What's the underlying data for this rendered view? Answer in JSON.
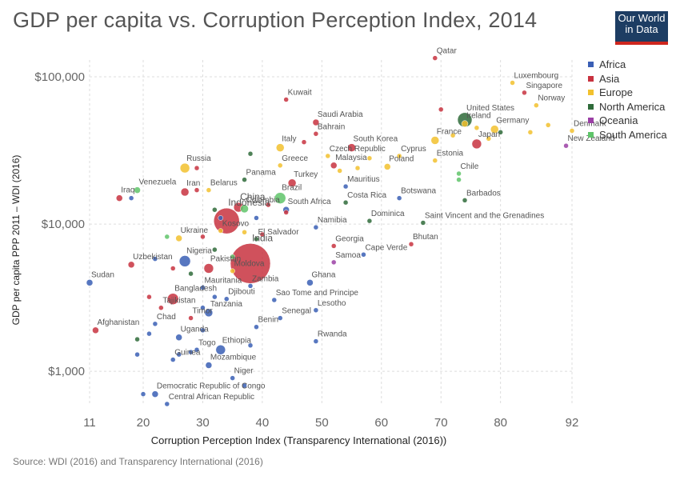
{
  "header": {
    "title": "GDP per capita vs. Corruption Perception Index, 2014",
    "logo_line1": "Our World",
    "logo_line2": "in Data"
  },
  "source": "Source: WDI (2016) and Transparency International (2016)",
  "colors": {
    "Africa": "#3a5fb5",
    "Asia": "#c8323f",
    "Europe": "#f2c12e",
    "North America": "#2f6b3a",
    "Oceania": "#9b3fa5",
    "South America": "#5fc46a"
  },
  "chart_data": {
    "type": "scatter",
    "title": "GDP per capita vs. Corruption Perception Index, 2014",
    "xlabel": "Corruption Perception Index (Transparency International (2016))",
    "ylabel": "GDP per capita PPP 2011 – WDI (2016)",
    "xlim": [
      11,
      92
    ],
    "ylim": [
      600,
      130000
    ],
    "y_scale": "log",
    "x_ticks": [
      11,
      20,
      30,
      40,
      50,
      60,
      70,
      80,
      92
    ],
    "y_ticks": [
      {
        "value": 1000,
        "label": "$1,000"
      },
      {
        "value": 10000,
        "label": "$10,000"
      },
      {
        "value": 100000,
        "label": "$100,000"
      }
    ],
    "grid": true,
    "legend_position": "right",
    "legend": [
      "Africa",
      "Asia",
      "Europe",
      "North America",
      "Oceania",
      "South America"
    ],
    "points": [
      {
        "label": "Qatar",
        "x": 69,
        "y": 134000,
        "r": 3,
        "region": "Asia"
      },
      {
        "label": "Luxembourg",
        "x": 82,
        "y": 91000,
        "r": 3,
        "region": "Europe"
      },
      {
        "label": "Singapore",
        "x": 84,
        "y": 78000,
        "r": 3,
        "region": "Asia"
      },
      {
        "label": "Norway",
        "x": 86,
        "y": 64000,
        "r": 3,
        "region": "Europe"
      },
      {
        "label": "Kuwait",
        "x": 44,
        "y": 70000,
        "r": 3,
        "region": "Asia"
      },
      {
        "label": "United States",
        "x": 74,
        "y": 51000,
        "r": 9,
        "region": "North America"
      },
      {
        "label": "Ireland",
        "x": 74,
        "y": 48000,
        "r": 4,
        "region": "Europe"
      },
      {
        "label": "Saudi Arabia",
        "x": 49,
        "y": 49000,
        "r": 4,
        "region": "Asia"
      },
      {
        "label": "Bahrain",
        "x": 49,
        "y": 41000,
        "r": 3,
        "region": "Asia"
      },
      {
        "label": "Germany",
        "x": 79,
        "y": 44000,
        "r": 5,
        "region": "Europe"
      },
      {
        "label": "Denmark",
        "x": 92,
        "y": 43000,
        "r": 3,
        "region": "Europe"
      },
      {
        "label": "France",
        "x": 69,
        "y": 37000,
        "r": 5,
        "region": "Europe"
      },
      {
        "label": "Japan",
        "x": 76,
        "y": 35000,
        "r": 6,
        "region": "Asia"
      },
      {
        "label": "New Zealand",
        "x": 91,
        "y": 34000,
        "r": 3,
        "region": "Oceania"
      },
      {
        "label": "Italy",
        "x": 43,
        "y": 33000,
        "r": 5,
        "region": "Europe"
      },
      {
        "label": "South Korea",
        "x": 55,
        "y": 33000,
        "r": 5,
        "region": "Asia"
      },
      {
        "label": "Czech Republic",
        "x": 51,
        "y": 29000,
        "r": 3,
        "region": "Europe"
      },
      {
        "label": "Cyprus",
        "x": 63,
        "y": 29000,
        "r": 3,
        "region": "Europe"
      },
      {
        "label": "Malaysia",
        "x": 52,
        "y": 25000,
        "r": 4,
        "region": "Asia"
      },
      {
        "label": "Poland",
        "x": 61,
        "y": 24500,
        "r": 4,
        "region": "Europe"
      },
      {
        "label": "Greece",
        "x": 43,
        "y": 25000,
        "r": 3,
        "region": "Europe"
      },
      {
        "label": "Estonia",
        "x": 69,
        "y": 27000,
        "r": 3,
        "region": "Europe"
      },
      {
        "label": "Chile",
        "x": 73,
        "y": 22000,
        "r": 3,
        "region": "South America"
      },
      {
        "label": "Russia",
        "x": 27,
        "y": 24000,
        "r": 6,
        "region": "Europe"
      },
      {
        "label": "Panama",
        "x": 37,
        "y": 20000,
        "r": 3,
        "region": "North America"
      },
      {
        "label": "Turkey",
        "x": 45,
        "y": 19000,
        "r": 5,
        "region": "Asia"
      },
      {
        "label": "Mauritius",
        "x": 54,
        "y": 18000,
        "r": 3,
        "region": "Africa"
      },
      {
        "label": "Venezuela",
        "x": 19,
        "y": 17000,
        "r": 4,
        "region": "South America"
      },
      {
        "label": "Iran",
        "x": 27,
        "y": 16500,
        "r": 5,
        "region": "Asia"
      },
      {
        "label": "Belarus",
        "x": 31,
        "y": 17000,
        "r": 3,
        "region": "Europe"
      },
      {
        "label": "China",
        "x": 36,
        "y": 13000,
        "r": 6,
        "region": "Asia"
      },
      {
        "label": "Brazil",
        "x": 43,
        "y": 15000,
        "r": 7,
        "region": "South America"
      },
      {
        "label": "Botswana",
        "x": 63,
        "y": 15000,
        "r": 3,
        "region": "Africa"
      },
      {
        "label": "Barbados",
        "x": 74,
        "y": 14500,
        "r": 3,
        "region": "North America"
      },
      {
        "label": "Costa Rica",
        "x": 54,
        "y": 14000,
        "r": 3,
        "region": "North America"
      },
      {
        "label": "Iraq",
        "x": 16,
        "y": 15000,
        "r": 4,
        "region": "Asia"
      },
      {
        "label": "Colombia",
        "x": 37,
        "y": 12700,
        "r": 5,
        "region": "South America"
      },
      {
        "label": "South Africa",
        "x": 44,
        "y": 12500,
        "r": 4,
        "region": "Africa"
      },
      {
        "label": "Indonesia",
        "x": 34,
        "y": 10500,
        "r": 16,
        "region": "Asia"
      },
      {
        "label": "Dominica",
        "x": 58,
        "y": 10500,
        "r": 3,
        "region": "North America"
      },
      {
        "label": "Saint Vincent and the Grenadines",
        "x": 67,
        "y": 10200,
        "r": 3,
        "region": "North America"
      },
      {
        "label": "Kosovo",
        "x": 33,
        "y": 9000,
        "r": 3,
        "region": "Europe"
      },
      {
        "label": "Namibia",
        "x": 49,
        "y": 9500,
        "r": 3,
        "region": "Africa"
      },
      {
        "label": "Ukraine",
        "x": 26,
        "y": 8000,
        "r": 4,
        "region": "Europe"
      },
      {
        "label": "El Salvador",
        "x": 39,
        "y": 7900,
        "r": 3,
        "region": "North America"
      },
      {
        "label": "Bhutan",
        "x": 65,
        "y": 7300,
        "r": 3,
        "region": "Asia"
      },
      {
        "label": "Georgia",
        "x": 52,
        "y": 7100,
        "r": 3,
        "region": "Asia"
      },
      {
        "label": "India",
        "x": 38,
        "y": 5400,
        "r": 25,
        "region": "Asia"
      },
      {
        "label": "Cape Verde",
        "x": 57,
        "y": 6200,
        "r": 3,
        "region": "Africa"
      },
      {
        "label": "Nigeria",
        "x": 27,
        "y": 5600,
        "r": 7,
        "region": "Africa"
      },
      {
        "label": "Uzbekistan",
        "x": 18,
        "y": 5300,
        "r": 4,
        "region": "Asia"
      },
      {
        "label": "Samoa",
        "x": 52,
        "y": 5500,
        "r": 3,
        "region": "Oceania"
      },
      {
        "label": "Pakistan",
        "x": 31,
        "y": 5000,
        "r": 6,
        "region": "Asia"
      },
      {
        "label": "Moldova",
        "x": 35,
        "y": 4800,
        "r": 3,
        "region": "Europe"
      },
      {
        "label": "Sudan",
        "x": 11,
        "y": 4000,
        "r": 4,
        "region": "Africa"
      },
      {
        "label": "Mauritania",
        "x": 30,
        "y": 3700,
        "r": 3,
        "region": "Africa"
      },
      {
        "label": "Zambia",
        "x": 38,
        "y": 3800,
        "r": 3,
        "region": "Africa"
      },
      {
        "label": "Ghana",
        "x": 48,
        "y": 4000,
        "r": 4,
        "region": "Africa"
      },
      {
        "label": "Bangladesh",
        "x": 25,
        "y": 3100,
        "r": 7,
        "region": "Asia"
      },
      {
        "label": "Djibouti",
        "x": 34,
        "y": 3100,
        "r": 3,
        "region": "Africa"
      },
      {
        "label": "Sao Tome and Principe",
        "x": 42,
        "y": 3050,
        "r": 3,
        "region": "Africa"
      },
      {
        "label": "Tajikistan",
        "x": 23,
        "y": 2700,
        "r": 3,
        "region": "Asia"
      },
      {
        "label": "Tanzania",
        "x": 31,
        "y": 2500,
        "r": 5,
        "region": "Africa"
      },
      {
        "label": "Lesotho",
        "x": 49,
        "y": 2600,
        "r": 3,
        "region": "Africa"
      },
      {
        "label": "Timor",
        "x": 28,
        "y": 2300,
        "r": 3,
        "region": "Asia"
      },
      {
        "label": "Senegal",
        "x": 43,
        "y": 2300,
        "r": 3,
        "region": "Africa"
      },
      {
        "label": "Afghanistan",
        "x": 12,
        "y": 1900,
        "r": 4,
        "region": "Asia"
      },
      {
        "label": "Chad",
        "x": 22,
        "y": 2100,
        "r": 3,
        "region": "Africa"
      },
      {
        "label": "Benin",
        "x": 39,
        "y": 2000,
        "r": 3,
        "region": "Africa"
      },
      {
        "label": "Uganda",
        "x": 26,
        "y": 1700,
        "r": 4,
        "region": "Africa"
      },
      {
        "label": "Rwanda",
        "x": 49,
        "y": 1600,
        "r": 3,
        "region": "Africa"
      },
      {
        "label": "Togo",
        "x": 29,
        "y": 1400,
        "r": 3,
        "region": "Africa"
      },
      {
        "label": "Ethiopia",
        "x": 33,
        "y": 1400,
        "r": 6,
        "region": "Africa"
      },
      {
        "label": "Guinea",
        "x": 25,
        "y": 1200,
        "r": 3,
        "region": "Africa"
      },
      {
        "label": "Mozambique",
        "x": 31,
        "y": 1100,
        "r": 4,
        "region": "Africa"
      },
      {
        "label": "Niger",
        "x": 35,
        "y": 900,
        "r": 3,
        "region": "Africa"
      },
      {
        "label": "Democratic Republic of Congo",
        "x": 22,
        "y": 700,
        "r": 4,
        "region": "Africa"
      },
      {
        "label": "Central African Republic",
        "x": 24,
        "y": 600,
        "r": 3,
        "region": "Africa"
      }
    ],
    "extra_points": [
      {
        "x": 88,
        "y": 47000,
        "r": 3,
        "region": "Europe"
      },
      {
        "x": 85,
        "y": 42000,
        "r": 3,
        "region": "Europe"
      },
      {
        "x": 80,
        "y": 42000,
        "r": 3,
        "region": "North America"
      },
      {
        "x": 78,
        "y": 38000,
        "r": 3,
        "region": "Europe"
      },
      {
        "x": 76,
        "y": 45000,
        "r": 3,
        "region": "Europe"
      },
      {
        "x": 70,
        "y": 60000,
        "r": 3,
        "region": "Asia"
      },
      {
        "x": 72,
        "y": 40000,
        "r": 3,
        "region": "Europe"
      },
      {
        "x": 58,
        "y": 28000,
        "r": 3,
        "region": "Europe"
      },
      {
        "x": 56,
        "y": 24000,
        "r": 3,
        "region": "Europe"
      },
      {
        "x": 53,
        "y": 23000,
        "r": 3,
        "region": "Europe"
      },
      {
        "x": 47,
        "y": 36000,
        "r": 3,
        "region": "Asia"
      },
      {
        "x": 38,
        "y": 30000,
        "r": 3,
        "region": "North America"
      },
      {
        "x": 29,
        "y": 24000,
        "r": 3,
        "region": "Asia"
      },
      {
        "x": 29,
        "y": 17000,
        "r": 3,
        "region": "Asia"
      },
      {
        "x": 18,
        "y": 15000,
        "r": 3,
        "region": "Africa"
      },
      {
        "x": 32,
        "y": 12500,
        "r": 3,
        "region": "North America"
      },
      {
        "x": 33,
        "y": 11000,
        "r": 3,
        "region": "Africa"
      },
      {
        "x": 39,
        "y": 11000,
        "r": 3,
        "region": "Africa"
      },
      {
        "x": 44,
        "y": 12000,
        "r": 3,
        "region": "Asia"
      },
      {
        "x": 40,
        "y": 8500,
        "r": 3,
        "region": "Asia"
      },
      {
        "x": 37,
        "y": 8800,
        "r": 3,
        "region": "Europe"
      },
      {
        "x": 30,
        "y": 8200,
        "r": 3,
        "region": "Asia"
      },
      {
        "x": 32,
        "y": 6700,
        "r": 3,
        "region": "North America"
      },
      {
        "x": 35,
        "y": 6000,
        "r": 3,
        "region": "South America"
      },
      {
        "x": 24,
        "y": 8200,
        "r": 3,
        "region": "South America"
      },
      {
        "x": 22,
        "y": 5800,
        "r": 3,
        "region": "Africa"
      },
      {
        "x": 25,
        "y": 5000,
        "r": 3,
        "region": "Asia"
      },
      {
        "x": 28,
        "y": 4600,
        "r": 3,
        "region": "North America"
      },
      {
        "x": 21,
        "y": 3200,
        "r": 3,
        "region": "Asia"
      },
      {
        "x": 32,
        "y": 3200,
        "r": 3,
        "region": "Africa"
      },
      {
        "x": 30,
        "y": 2700,
        "r": 3,
        "region": "Africa"
      },
      {
        "x": 21,
        "y": 1800,
        "r": 3,
        "region": "Africa"
      },
      {
        "x": 19,
        "y": 1650,
        "r": 3,
        "region": "North America"
      },
      {
        "x": 19,
        "y": 1300,
        "r": 3,
        "region": "Africa"
      },
      {
        "x": 30,
        "y": 1900,
        "r": 3,
        "region": "Africa"
      },
      {
        "x": 26,
        "y": 1300,
        "r": 3,
        "region": "Africa"
      },
      {
        "x": 28,
        "y": 1350,
        "r": 3,
        "region": "Africa"
      },
      {
        "x": 38,
        "y": 1500,
        "r": 3,
        "region": "Africa"
      },
      {
        "x": 20,
        "y": 700,
        "r": 3,
        "region": "Africa"
      },
      {
        "x": 37,
        "y": 800,
        "r": 3,
        "region": "Africa"
      },
      {
        "x": 41,
        "y": 13500,
        "r": 3,
        "region": "Asia"
      },
      {
        "x": 73,
        "y": 20000,
        "r": 3,
        "region": "South America"
      }
    ]
  }
}
